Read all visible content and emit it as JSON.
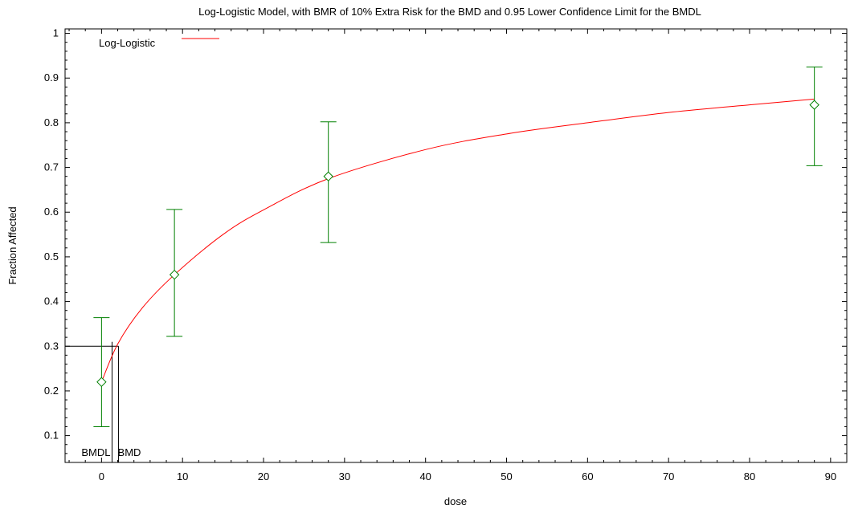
{
  "chart_data": {
    "type": "scatter",
    "title": "Log-Logistic Model, with BMR of 10% Extra Risk for the BMD and 0.95 Lower Confidence Limit for the BMDL",
    "xlabel": "dose",
    "ylabel": "Fraction Affected",
    "xlim": [
      -4.5,
      92
    ],
    "ylim": [
      0.04,
      1.01
    ],
    "xticks": [
      0,
      10,
      20,
      30,
      40,
      50,
      60,
      70,
      80,
      90
    ],
    "yticks": [
      0.1,
      0.2,
      0.3,
      0.4,
      0.5,
      0.6,
      0.7,
      0.8,
      0.9,
      1
    ],
    "legend": {
      "position": "top-left",
      "entries": [
        "Log-Logistic"
      ]
    },
    "grid": false,
    "colors": {
      "model": "#ff0000",
      "observed": "#008000",
      "bmd": "#000000"
    },
    "observed": {
      "x": [
        0,
        9,
        28,
        88
      ],
      "y": [
        0.22,
        0.46,
        0.68,
        0.84
      ],
      "lower": [
        0.12,
        0.322,
        0.532,
        0.704
      ],
      "upper": [
        0.364,
        0.606,
        0.802,
        0.925
      ]
    },
    "model": {
      "name": "Log-Logistic",
      "x": [
        0,
        2,
        5,
        9,
        15,
        20,
        28,
        40,
        50,
        60,
        70,
        80,
        88
      ],
      "y": [
        0.22,
        0.305,
        0.385,
        0.46,
        0.55,
        0.605,
        0.675,
        0.74,
        0.775,
        0.8,
        0.823,
        0.84,
        0.853
      ]
    },
    "bmd": {
      "bmd_x": 2.1,
      "bmdl_x": 1.3,
      "bmr_y": 0.3,
      "bmd_label": "BMD",
      "bmdl_label": "BMDL"
    }
  }
}
